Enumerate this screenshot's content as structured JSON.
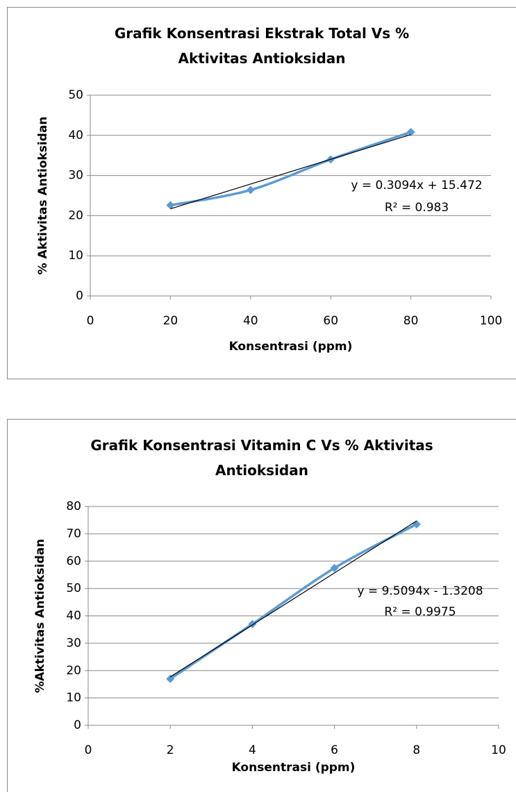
{
  "chart_data": [
    {
      "type": "line",
      "title": "Grafik Konsentrasi Ekstrak Total Vs % Aktivitas Antioksidan",
      "xlabel": "Konsentrasi (ppm)",
      "ylabel": "% Aktivitas Antioksidan",
      "x": [
        20,
        40,
        60,
        80
      ],
      "series": [
        {
          "color": "#5b9bd5",
          "values": [
            22.6,
            26.4,
            34,
            40.8
          ]
        }
      ],
      "trendline": {
        "x": [
          20,
          80
        ],
        "values": [
          21.7,
          40.2
        ],
        "color": "#000000"
      },
      "annotations": [
        "y = 0.3094x + 15.472",
        "R² = 0.983"
      ],
      "xlim": [
        0,
        100
      ],
      "xticks": [
        0,
        20,
        40,
        60,
        80,
        100
      ],
      "ylim": [
        0,
        50
      ],
      "yticks": [
        0,
        10,
        20,
        30,
        40,
        50
      ],
      "grid": true
    },
    {
      "type": "line",
      "title": "Grafik Konsentrasi Vitamin C Vs % Aktivitas Antioksidan",
      "xlabel": "Konsentrasi (ppm)",
      "ylabel": "%Aktivitas Antioksidan",
      "x": [
        2,
        4,
        6,
        8
      ],
      "series": [
        {
          "color": "#5b9bd5",
          "values": [
            17,
            37,
            57.5,
            73.5
          ]
        }
      ],
      "trendline": {
        "x": [
          2,
          8
        ],
        "values": [
          17.7,
          74.7
        ],
        "color": "#000000"
      },
      "annotations": [
        "y = 9.5094x - 1.3208",
        "R² = 0.9975"
      ],
      "xlim": [
        0,
        10
      ],
      "xticks": [
        0,
        2,
        4,
        6,
        8,
        10
      ],
      "ylim": [
        0,
        80
      ],
      "yticks": [
        0,
        10,
        20,
        30,
        40,
        50,
        60,
        70,
        80
      ],
      "grid": true
    }
  ]
}
